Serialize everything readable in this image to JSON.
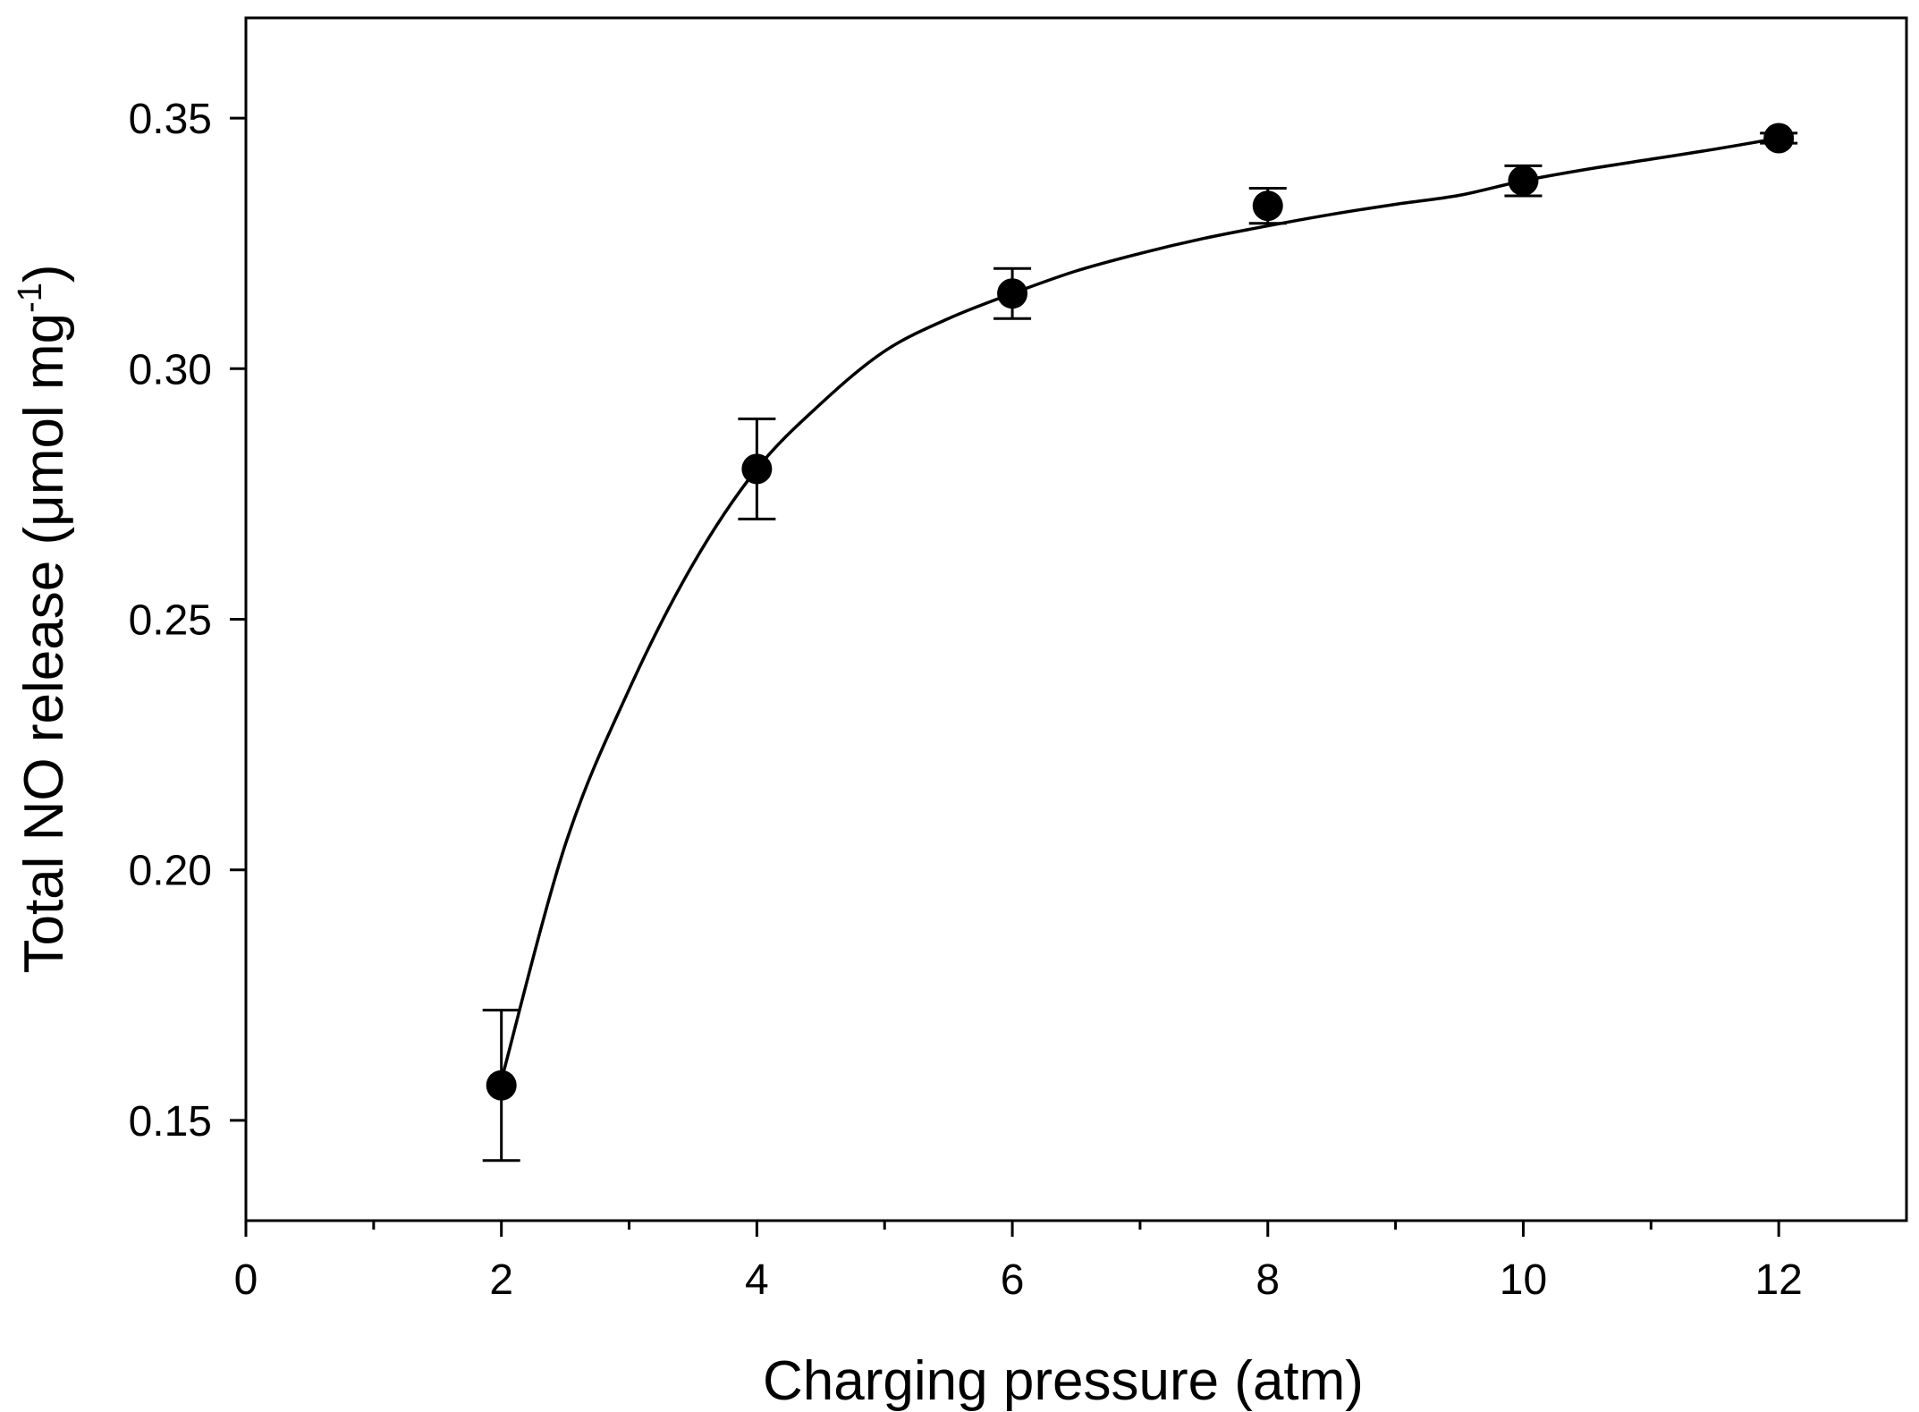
{
  "chart_data": {
    "type": "scatter",
    "title": "",
    "xlabel": "Charging pressure (atm)",
    "ylabel_main": "Total NO release (",
    "ylabel_unit": "μmol mg",
    "ylabel_exp": "-1",
    "ylabel_close": ")",
    "xlim": [
      0,
      13
    ],
    "ylim": [
      0.13,
      0.37
    ],
    "xticks": [
      0,
      2,
      4,
      6,
      8,
      10,
      12
    ],
    "xtick_labels": [
      "0",
      "2",
      "4",
      "6",
      "8",
      "10",
      "12"
    ],
    "yticks": [
      0.15,
      0.2,
      0.25,
      0.3,
      0.35
    ],
    "ytick_labels": [
      "0.15",
      "0.20",
      "0.25",
      "0.30",
      "0.35"
    ],
    "grid": false,
    "series": [
      {
        "name": "Total NO release",
        "x": [
          2,
          4,
          6,
          8,
          10,
          12
        ],
        "y": [
          0.157,
          0.28,
          0.315,
          0.3325,
          0.3375,
          0.346
        ],
        "yerr": [
          0.015,
          0.01,
          0.005,
          0.0035,
          0.003,
          0.001
        ],
        "marker_color": "#000000"
      }
    ],
    "fit_curve": {
      "name": "fit",
      "x": [
        2,
        2.5,
        3,
        3.5,
        4,
        4.5,
        5,
        5.5,
        6,
        6.5,
        7,
        7.5,
        8,
        8.5,
        9,
        9.5,
        10,
        10.5,
        11,
        11.5,
        12
      ],
      "y": [
        0.158,
        0.205,
        0.236,
        0.261,
        0.28,
        0.293,
        0.3035,
        0.31,
        0.315,
        0.3195,
        0.323,
        0.326,
        0.3285,
        0.3308,
        0.3328,
        0.3346,
        0.3375,
        0.3398,
        0.3418,
        0.3438,
        0.346
      ],
      "color": "#000000"
    }
  }
}
